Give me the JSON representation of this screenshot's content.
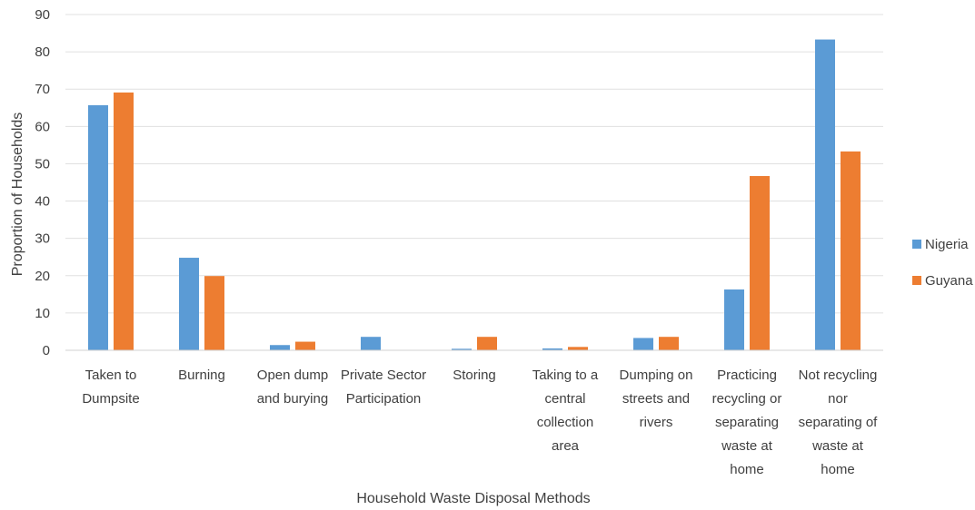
{
  "chart_data": {
    "type": "bar",
    "title": "",
    "xlabel": "Household Waste Disposal Methods",
    "ylabel": "Proportion of Households",
    "ylim": [
      0,
      90
    ],
    "yticks": [
      0,
      10,
      20,
      30,
      40,
      50,
      60,
      70,
      80,
      90
    ],
    "grid": true,
    "legend_position": "right",
    "categories": [
      [
        "Taken to",
        "Dumpsite"
      ],
      [
        "Burning"
      ],
      [
        "Open dump",
        "and burying"
      ],
      [
        "Private Sector",
        "Participation"
      ],
      [
        "Storing"
      ],
      [
        "Taking to a",
        "central",
        "collection",
        "area"
      ],
      [
        "Dumping on",
        "streets and",
        "rivers"
      ],
      [
        "Practicing",
        "recycling or",
        "separating",
        "waste at",
        "home"
      ],
      [
        "Not recycling",
        "nor",
        "separating of",
        "waste at",
        "home"
      ]
    ],
    "series": [
      {
        "name": "Nigeria",
        "color": "#5B9BD5",
        "values": [
          65.7,
          24.8,
          1.4,
          3.6,
          0.4,
          0.5,
          3.3,
          16.3,
          83.3
        ]
      },
      {
        "name": "Guyana",
        "color": "#ED7D31",
        "values": [
          69.1,
          19.9,
          2.3,
          0,
          3.6,
          0.9,
          3.6,
          46.7,
          53.3
        ]
      }
    ]
  }
}
